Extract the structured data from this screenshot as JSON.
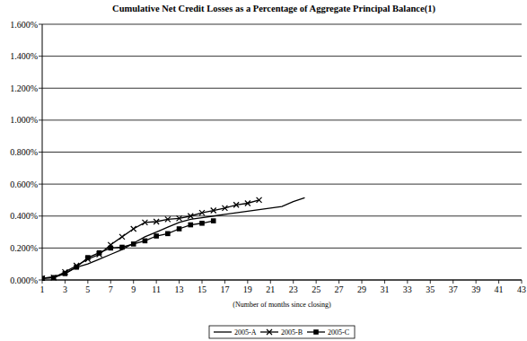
{
  "chart_data": {
    "type": "line",
    "title": "Cumulative Net Credit Losses as a Percentage of Aggregate Principal Balance(1)",
    "x_label": "(Number of months since closing)",
    "x": [
      1,
      2,
      3,
      4,
      5,
      6,
      7,
      8,
      9,
      10,
      11,
      12,
      13,
      14,
      15,
      16,
      17,
      18,
      19,
      20,
      21,
      22,
      23,
      24
    ],
    "xlim": [
      1,
      43
    ],
    "xticks": [
      1,
      3,
      5,
      7,
      9,
      11,
      13,
      15,
      17,
      19,
      21,
      23,
      25,
      27,
      29,
      31,
      33,
      35,
      37,
      39,
      41,
      43
    ],
    "ylim": [
      0,
      1.6
    ],
    "yticks": [
      {
        "value": 0,
        "label": "0.000%"
      },
      {
        "value": 0.2,
        "label": "0.200%"
      },
      {
        "value": 0.4,
        "label": "0.400%"
      },
      {
        "value": 0.6,
        "label": "0.600%"
      },
      {
        "value": 0.8,
        "label": "0.800%"
      },
      {
        "value": 1.0,
        "label": "1.000%"
      },
      {
        "value": 1.2,
        "label": "1.200%"
      },
      {
        "value": 1.4,
        "label": "1.400%"
      },
      {
        "value": 1.6,
        "label": "1.600%"
      }
    ],
    "grid": true,
    "legend": "bottom",
    "series": [
      {
        "name": "2005-A",
        "color": "#000000",
        "marker": "none",
        "line_style": "solid",
        "values": [
          0.01,
          0.02,
          0.04,
          0.08,
          0.1,
          0.13,
          0.16,
          0.19,
          0.23,
          0.27,
          0.3,
          0.33,
          0.36,
          0.38,
          0.39,
          0.4,
          0.41,
          0.42,
          0.43,
          0.44,
          0.45,
          0.46,
          0.49,
          0.515
        ]
      },
      {
        "name": "2005-B",
        "color": "#000000",
        "marker": "x",
        "line_style": "solid",
        "values": [
          0.01,
          0.015,
          0.05,
          0.09,
          0.13,
          0.16,
          0.22,
          0.27,
          0.32,
          0.36,
          0.365,
          0.38,
          0.385,
          0.4,
          0.42,
          0.435,
          0.45,
          0.47,
          0.48,
          0.5,
          null,
          null,
          null,
          null
        ]
      },
      {
        "name": "2005-C",
        "color": "#000000",
        "marker": "square",
        "line_style": "solid",
        "values": [
          0.01,
          0.015,
          0.04,
          0.08,
          0.14,
          0.17,
          0.2,
          0.205,
          0.225,
          0.245,
          0.275,
          0.29,
          0.32,
          0.345,
          0.355,
          0.37,
          null,
          null,
          null,
          null,
          null,
          null,
          null,
          null
        ]
      }
    ]
  }
}
